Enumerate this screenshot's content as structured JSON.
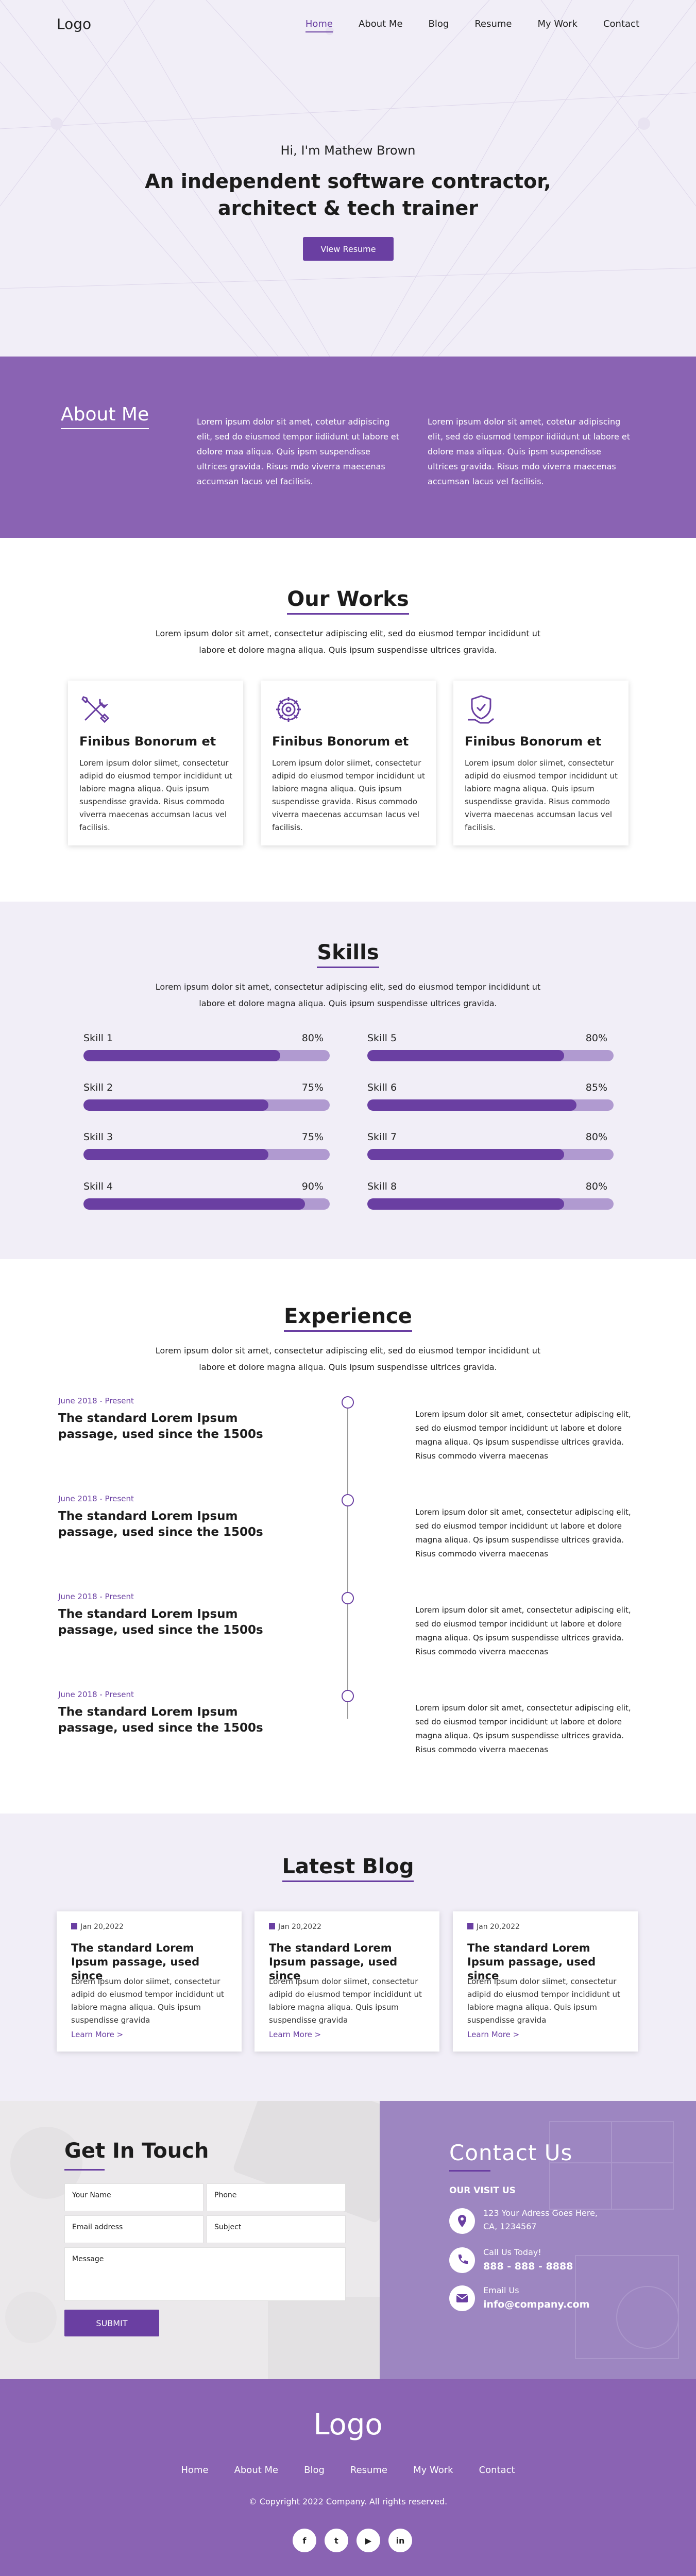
{
  "colors": {
    "accent": "#6a3fa2",
    "about_bg": "#8a63b3",
    "light_bg": "#f1eef7",
    "bar_track": "#b09ad0"
  },
  "nav": {
    "logo": "Logo",
    "items": [
      "Home",
      "About Me",
      "Blog",
      "Resume",
      "My Work",
      "Contact"
    ],
    "active": "Home"
  },
  "hero": {
    "greeting": "Hi, I'm Mathew Brown",
    "title_line1": "An independent software contractor,",
    "title_line2": "architect & tech trainer",
    "button": "View Resume"
  },
  "about": {
    "title": "About Me",
    "col1": "Lorem ipsum dolor sit amet, cotetur adipiscing elit, sed do eiusmod tempor iidiidunt ut labore et dolore maa aliqua. Quis ipsm suspendisse ultrices gravida. Risus mdo viverra maecenas accumsan lacus vel facilisis.",
    "col2": "Lorem ipsum dolor sit amet, cotetur adipiscing elit, sed do eiusmod tempor iidiidunt ut labore et dolore maa aliqua. Quis ipsm suspendisse ultrices gravida. Risus mdo viverra maecenas accumsan lacus vel facilisis."
  },
  "works": {
    "title": "Our Works",
    "subtitle": "Lorem ipsum dolor sit amet, consectetur adipiscing elit, sed do eiusmod tempor incididunt ut labore et dolore magna aliqua. Quis ipsum suspendisse ultrices gravida.",
    "cards": [
      {
        "icon": "tools-icon",
        "title": "Finibus Bonorum et",
        "text": "Lorem ipsum dolor siimet, consectetur adipid do eiusmod tempor incididunt ut labiore magna aliqua. Quis ipsum suspendisse gravida. Risus commodo viverra maecenas accumsan lacus vel facilisis."
      },
      {
        "icon": "gear-icon",
        "title": "Finibus Bonorum et",
        "text": "Lorem ipsum dolor siimet, consectetur adipid do eiusmod tempor incididunt ut labiore magna aliqua. Quis ipsum suspendisse gravida. Risus commodo viverra maecenas accumsan lacus vel facilisis."
      },
      {
        "icon": "shield-hand-icon",
        "title": "Finibus Bonorum et",
        "text": "Lorem ipsum dolor siimet, consectetur adipid do eiusmod tempor incididunt ut labiore magna aliqua. Quis ipsum suspendisse gravida. Risus commodo viverra maecenas accumsan lacus vel facilisis."
      }
    ]
  },
  "skills": {
    "title": "Skills",
    "subtitle": "Lorem ipsum dolor sit amet, consectetur adipiscing elit, sed do eiusmod tempor incididunt ut labore et dolore magna aliqua. Quis ipsum suspendisse ultrices gravida.",
    "items": [
      {
        "name": "Skill 1",
        "percent": "80%",
        "value": 80
      },
      {
        "name": "Skill 2",
        "percent": "75%",
        "value": 75
      },
      {
        "name": "Skill 3",
        "percent": "75%",
        "value": 75
      },
      {
        "name": "Skill 4",
        "percent": "90%",
        "value": 90
      },
      {
        "name": "Skill 5",
        "percent": "80%",
        "value": 80
      },
      {
        "name": "Skill 6",
        "percent": "85%",
        "value": 85
      },
      {
        "name": "Skill 7",
        "percent": "80%",
        "value": 80
      },
      {
        "name": "Skill 8",
        "percent": "80%",
        "value": 80
      }
    ]
  },
  "experience": {
    "title": "Experience",
    "subtitle": "Lorem ipsum dolor sit amet, consectetur adipiscing elit, sed do eiusmod tempor incididunt ut labore et dolore magna aliqua. Quis ipsum suspendisse ultrices gravida.",
    "items": [
      {
        "date": "June 2018 - Present",
        "heading": "The standard Lorem Ipsum passage, used since the 1500s",
        "text": "Lorem ipsum dolor sit amet, consectetur adipiscing elit, sed do eiusmod tempor incididunt ut labore et dolore magna aliqua. Qs ipsum suspendisse ultrices gravida. Risus commodo viverra maecenas"
      },
      {
        "date": "June 2018 - Present",
        "heading": "The standard Lorem Ipsum passage, used since the 1500s",
        "text": "Lorem ipsum dolor sit amet, consectetur adipiscing elit, sed do eiusmod tempor incididunt ut labore et dolore magna aliqua. Qs ipsum suspendisse ultrices gravida. Risus commodo viverra maecenas"
      },
      {
        "date": "June 2018 - Present",
        "heading": "The standard Lorem Ipsum passage, used since the 1500s",
        "text": "Lorem ipsum dolor sit amet, consectetur adipiscing elit, sed do eiusmod tempor incididunt ut labore et dolore magna aliqua. Qs ipsum suspendisse ultrices gravida. Risus commodo viverra maecenas"
      },
      {
        "date": "June 2018 - Present",
        "heading": "The standard Lorem Ipsum passage, used since the 1500s",
        "text": "Lorem ipsum dolor sit amet, consectetur adipiscing elit, sed do eiusmod tempor incididunt ut labore et dolore magna aliqua. Qs ipsum suspendisse ultrices gravida. Risus commodo viverra maecenas"
      }
    ]
  },
  "blog": {
    "title": "Latest Blog",
    "posts": [
      {
        "date": "Jan 20,2022",
        "title": "The standard Lorem Ipsum passage, used since",
        "text": "Lorem ipsum dolor siimet, consectetur adipid do eiusmod tempor incididunt ut labiore magna aliqua. Quis ipsum suspendisse gravida",
        "more": "Learn More >"
      },
      {
        "date": "Jan 20,2022",
        "title": "The standard Lorem Ipsum passage, used since",
        "text": "Lorem ipsum dolor siimet, consectetur adipid do eiusmod tempor incididunt ut labiore magna aliqua. Quis ipsum suspendisse gravida",
        "more": "Learn More >"
      },
      {
        "date": "Jan 20,2022",
        "title": "The standard Lorem Ipsum passage, used since",
        "text": "Lorem ipsum dolor siimet, consectetur adipid do eiusmod tempor incididunt ut labiore magna aliqua. Quis ipsum suspendisse gravida",
        "more": "Learn More >"
      }
    ]
  },
  "contact": {
    "title": "Get In Touch",
    "fields": {
      "name": "Your Name",
      "phone": "Phone",
      "email": "Email address",
      "subject": "Subject",
      "message": "Message"
    },
    "submit": "SUBMIT",
    "info_title": "Contact  Us",
    "visit": "OUR VISIT US",
    "address_line1": "123 Your Adress Goes Here,",
    "address_line2": "CA, 1234567",
    "call_label": "Call Us Today!",
    "phone": "888 - 888 - 8888",
    "email_label": "Email Us",
    "email": "info@company.com"
  },
  "footer": {
    "logo": "Logo",
    "items": [
      "Home",
      "About Me",
      "Blog",
      "Resume",
      "My Work",
      "Contact"
    ],
    "copyright": "© Copyright 2022 Company. All rights reserved.",
    "social": [
      {
        "icon": "facebook-icon",
        "glyph": "f"
      },
      {
        "icon": "twitter-icon",
        "glyph": "t"
      },
      {
        "icon": "youtube-icon",
        "glyph": "▶"
      },
      {
        "icon": "linkedin-icon",
        "glyph": "in"
      }
    ]
  }
}
